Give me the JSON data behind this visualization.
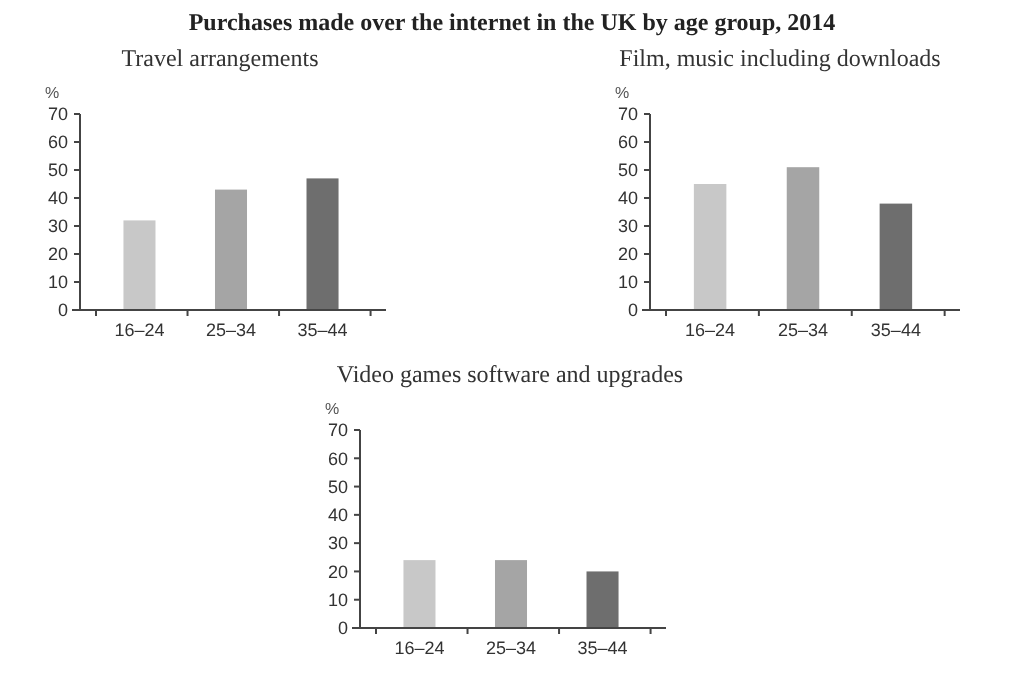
{
  "chart_data": [
    {
      "type": "bar",
      "title": "Purchases made over the internet in the UK by age group, 2014",
      "subtitle": "Travel arrangements",
      "ylabel": "%",
      "categories": [
        "16–24",
        "25–34",
        "35–44"
      ],
      "values": [
        32,
        43,
        47
      ],
      "colors": [
        "#c8c8c8",
        "#a5a5a5",
        "#6e6e6e"
      ],
      "ylim": [
        0,
        70
      ],
      "yticks": [
        0,
        10,
        20,
        30,
        40,
        50,
        60,
        70
      ]
    },
    {
      "type": "bar",
      "subtitle": "Film, music including downloads",
      "ylabel": "%",
      "categories": [
        "16–24",
        "25–34",
        "35–44"
      ],
      "values": [
        45,
        51,
        38
      ],
      "colors": [
        "#c8c8c8",
        "#a5a5a5",
        "#6e6e6e"
      ],
      "ylim": [
        0,
        70
      ],
      "yticks": [
        0,
        10,
        20,
        30,
        40,
        50,
        60,
        70
      ]
    },
    {
      "type": "bar",
      "subtitle": "Video games software and upgrades",
      "ylabel": "%",
      "categories": [
        "16–24",
        "25–34",
        "35–44"
      ],
      "values": [
        24,
        24,
        20
      ],
      "colors": [
        "#c8c8c8",
        "#a5a5a5",
        "#6e6e6e"
      ],
      "ylim": [
        0,
        70
      ],
      "yticks": [
        0,
        10,
        20,
        30,
        40,
        50,
        60,
        70
      ]
    }
  ]
}
